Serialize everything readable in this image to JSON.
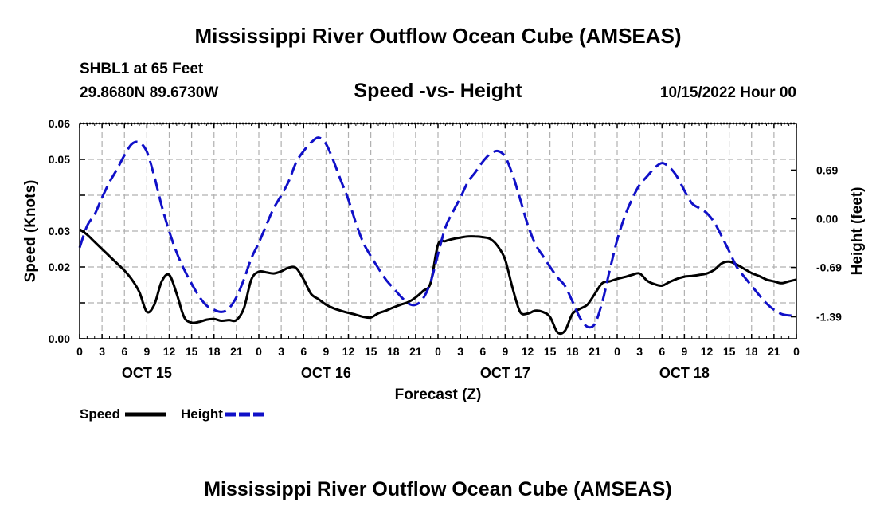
{
  "header": {
    "title": "Mississippi River Outflow Ocean Cube (AMSEAS)",
    "station": "SHBL1 at 65 Feet",
    "coords": "29.8680N  89.6730W",
    "subtitle": "Speed -vs- Height",
    "datetime": "10/15/2022 Hour 00"
  },
  "footer": {
    "title": "Mississippi River Outflow Ocean Cube (AMSEAS)"
  },
  "legend": [
    {
      "label": "Speed",
      "color": "#000000",
      "style": "solid"
    },
    {
      "label": "Height",
      "color": "#1010c8",
      "style": "dashed"
    }
  ],
  "chart_data": {
    "type": "line",
    "title": "Speed -vs- Height",
    "xlabel": "Forecast (Z)",
    "ylabel": "Speed (Knots)",
    "y2label": "Height (feet)",
    "xlim": [
      0,
      96
    ],
    "ylim": [
      0,
      0.06
    ],
    "y2lim": [
      -1.7,
      1.35
    ],
    "grid": true,
    "x_ticks": [
      0,
      3,
      6,
      9,
      12,
      15,
      18,
      21,
      24,
      27,
      30,
      33,
      36,
      39,
      42,
      45,
      48,
      51,
      54,
      57,
      60,
      63,
      66,
      69,
      72,
      75,
      78,
      81,
      84,
      87,
      90,
      93,
      96
    ],
    "x_tick_labels": [
      "0",
      "3",
      "6",
      "9",
      "12",
      "15",
      "18",
      "21",
      "0",
      "3",
      "6",
      "9",
      "12",
      "15",
      "18",
      "21",
      "0",
      "3",
      "6",
      "9",
      "12",
      "15",
      "18",
      "21",
      "0",
      "3",
      "6",
      "9",
      "12",
      "15",
      "18",
      "21",
      "0"
    ],
    "day_labels": [
      {
        "label": "OCT 15",
        "x": 9
      },
      {
        "label": "OCT 16",
        "x": 33
      },
      {
        "label": "OCT 17",
        "x": 57
      },
      {
        "label": "OCT 18",
        "x": 81
      }
    ],
    "y_ticks": [
      0,
      0.01,
      0.02,
      0.03,
      0.04,
      0.05,
      0.06
    ],
    "y_tick_labels": [
      "0.00",
      "",
      "0.02",
      "0.03",
      "",
      "0.05",
      "0.06"
    ],
    "y2_ticks": [
      -1.39,
      -0.69,
      0.0,
      0.69
    ],
    "y2_tick_labels": [
      "-1.39",
      "-0.69",
      "0.00",
      "0.69"
    ],
    "series": [
      {
        "name": "Speed",
        "axis": "left",
        "color": "#000000",
        "dash": false,
        "x": [
          0,
          1,
          2,
          3,
          4,
          5,
          6,
          7,
          8,
          9,
          10,
          11,
          12,
          13,
          14,
          15,
          16,
          17,
          18,
          19,
          20,
          21,
          22,
          23,
          24,
          25,
          26,
          27,
          28,
          29,
          30,
          31,
          32,
          33,
          34,
          35,
          36,
          37,
          38,
          39,
          40,
          41,
          42,
          43,
          44,
          45,
          46,
          47,
          48,
          49,
          50,
          51,
          52,
          53,
          54,
          55,
          56,
          57,
          58,
          59,
          60,
          61,
          62,
          63,
          64,
          65,
          66,
          67,
          68,
          69,
          70,
          71,
          72,
          73,
          74,
          75,
          76,
          77,
          78,
          79,
          80,
          81,
          82,
          83,
          84,
          85,
          86,
          87,
          88,
          89,
          90,
          91,
          92,
          93,
          94,
          95,
          96
        ],
        "values": [
          0.0305,
          0.029,
          0.027,
          0.025,
          0.023,
          0.021,
          0.019,
          0.0165,
          0.013,
          0.0075,
          0.0095,
          0.016,
          0.0178,
          0.0125,
          0.006,
          0.0045,
          0.0047,
          0.0053,
          0.0055,
          0.005,
          0.0052,
          0.0052,
          0.0085,
          0.0165,
          0.0187,
          0.0185,
          0.0182,
          0.0188,
          0.0198,
          0.0197,
          0.0165,
          0.0125,
          0.011,
          0.0095,
          0.0085,
          0.0078,
          0.0072,
          0.0067,
          0.0061,
          0.0059,
          0.0071,
          0.0078,
          0.0087,
          0.0095,
          0.0102,
          0.0115,
          0.0133,
          0.0155,
          0.0262,
          0.0272,
          0.0278,
          0.0282,
          0.0285,
          0.0285,
          0.0283,
          0.0278,
          0.0258,
          0.022,
          0.014,
          0.0075,
          0.007,
          0.0078,
          0.0075,
          0.0061,
          0.0018,
          0.0022,
          0.0069,
          0.0083,
          0.0095,
          0.0125,
          0.0155,
          0.016,
          0.0167,
          0.0172,
          0.0178,
          0.0182,
          0.0162,
          0.0152,
          0.0148,
          0.0158,
          0.0167,
          0.0173,
          0.0175,
          0.0178,
          0.0182,
          0.0192,
          0.021,
          0.0215,
          0.0207,
          0.0195,
          0.0183,
          0.0175,
          0.0165,
          0.016,
          0.0155,
          0.016,
          0.0165
        ]
      },
      {
        "name": "Height",
        "axis": "right",
        "color": "#1010c8",
        "dash": true,
        "x": [
          0,
          1,
          2,
          3,
          4,
          5,
          6,
          7,
          8,
          9,
          10,
          11,
          12,
          13,
          14,
          15,
          16,
          17,
          18,
          19,
          20,
          21,
          22,
          23,
          24,
          25,
          26,
          27,
          28,
          29,
          30,
          31,
          32,
          33,
          34,
          35,
          36,
          37,
          38,
          39,
          40,
          41,
          42,
          43,
          44,
          45,
          46,
          47,
          48,
          49,
          50,
          51,
          52,
          53,
          54,
          55,
          56,
          57,
          58,
          59,
          60,
          61,
          62,
          63,
          64,
          65,
          66,
          67,
          68,
          69,
          70,
          71,
          72,
          73,
          74,
          75,
          76,
          77,
          78,
          79,
          80,
          81,
          82,
          83,
          84,
          85,
          86,
          87,
          88,
          89,
          90,
          91,
          92,
          93,
          94,
          95,
          96
        ],
        "values": [
          -0.41,
          -0.1,
          0.06,
          0.3,
          0.52,
          0.7,
          0.9,
          1.06,
          1.08,
          0.95,
          0.6,
          0.18,
          -0.18,
          -0.48,
          -0.72,
          -0.92,
          -1.1,
          -1.23,
          -1.29,
          -1.32,
          -1.27,
          -1.11,
          -0.86,
          -0.56,
          -0.34,
          -0.09,
          0.15,
          0.33,
          0.53,
          0.8,
          0.96,
          1.08,
          1.15,
          1.06,
          0.82,
          0.54,
          0.27,
          -0.06,
          -0.34,
          -0.53,
          -0.7,
          -0.86,
          -0.98,
          -1.1,
          -1.2,
          -1.22,
          -1.13,
          -0.9,
          -0.5,
          -0.12,
          0.1,
          0.3,
          0.52,
          0.66,
          0.81,
          0.92,
          0.96,
          0.88,
          0.62,
          0.28,
          -0.08,
          -0.35,
          -0.52,
          -0.68,
          -0.83,
          -0.95,
          -1.17,
          -1.4,
          -1.53,
          -1.49,
          -1.18,
          -0.73,
          -0.3,
          0.03,
          0.28,
          0.48,
          0.6,
          0.72,
          0.79,
          0.73,
          0.6,
          0.4,
          0.22,
          0.15,
          0.08,
          -0.05,
          -0.25,
          -0.46,
          -0.68,
          -0.82,
          -0.95,
          -1.08,
          -1.2,
          -1.29,
          -1.35,
          -1.37,
          -1.37
        ]
      }
    ]
  }
}
